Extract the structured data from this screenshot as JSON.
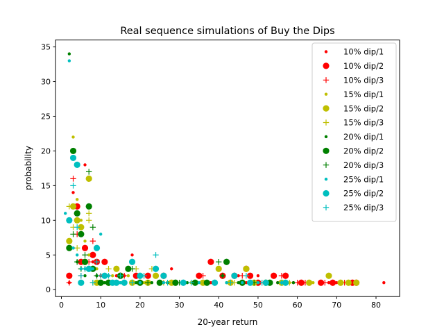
{
  "chart_data": {
    "type": "scatter",
    "title": "Real sequence simulations of Buy the Dips",
    "xlabel": "20-year return",
    "ylabel": "probability",
    "xlim": [
      -1.5,
      86
    ],
    "ylim": [
      -1,
      36
    ],
    "xticks": [
      0,
      10,
      20,
      30,
      40,
      50,
      60,
      70,
      80
    ],
    "yticks": [
      0,
      5,
      10,
      15,
      20,
      25,
      30,
      35
    ],
    "grid": false,
    "legend_position": "top-right",
    "colors": {
      "red": "#ff0000",
      "olive": "#bfbf00",
      "green": "#008000",
      "cyan": "#00bfbf"
    },
    "series": [
      {
        "name": "10% dip/1",
        "color": "#ff0000",
        "marker": "dot",
        "points": [
          [
            2,
            1
          ],
          [
            3,
            14
          ],
          [
            6,
            18
          ],
          [
            7,
            12
          ],
          [
            8,
            4
          ],
          [
            10,
            2
          ],
          [
            12,
            2
          ],
          [
            14,
            2
          ],
          [
            16,
            2
          ],
          [
            18,
            5
          ],
          [
            20,
            2
          ],
          [
            22,
            1
          ],
          [
            24,
            2
          ],
          [
            26,
            1
          ],
          [
            28,
            3
          ],
          [
            35,
            2
          ],
          [
            38,
            1
          ],
          [
            40,
            3
          ],
          [
            45,
            2
          ],
          [
            47,
            1
          ],
          [
            48,
            1
          ],
          [
            50,
            2
          ],
          [
            52,
            1
          ],
          [
            55,
            1
          ],
          [
            57,
            2
          ],
          [
            59,
            1
          ],
          [
            61,
            1
          ],
          [
            63,
            1
          ],
          [
            66,
            1
          ],
          [
            68,
            1
          ],
          [
            70,
            1
          ],
          [
            73,
            1
          ],
          [
            75,
            1
          ],
          [
            82,
            1
          ]
        ]
      },
      {
        "name": "10% dip/2",
        "color": "#ff0000",
        "marker": "circle",
        "points": [
          [
            2,
            2
          ],
          [
            4,
            12
          ],
          [
            5,
            4
          ],
          [
            6,
            6
          ],
          [
            8,
            5
          ],
          [
            9,
            4
          ],
          [
            11,
            4
          ],
          [
            15,
            2
          ],
          [
            19,
            2
          ],
          [
            22,
            2
          ],
          [
            26,
            2
          ],
          [
            35,
            2
          ],
          [
            38,
            4
          ],
          [
            41,
            2
          ],
          [
            44,
            2
          ],
          [
            47,
            3
          ],
          [
            48,
            2
          ],
          [
            50,
            1
          ],
          [
            54,
            2
          ],
          [
            57,
            2
          ],
          [
            61,
            1
          ],
          [
            66,
            1
          ],
          [
            69,
            1
          ],
          [
            74,
            1
          ],
          [
            75,
            1
          ]
        ]
      },
      {
        "name": "10% dip/3",
        "color": "#ff0000",
        "marker": "plus",
        "points": [
          [
            2,
            1
          ],
          [
            3,
            16
          ],
          [
            4,
            8
          ],
          [
            5,
            2
          ],
          [
            6,
            3
          ],
          [
            7,
            4
          ],
          [
            8,
            7
          ],
          [
            10,
            2
          ],
          [
            13,
            1
          ],
          [
            16,
            2
          ],
          [
            21,
            2
          ],
          [
            25,
            1
          ],
          [
            36,
            2
          ],
          [
            39,
            1
          ],
          [
            46,
            2
          ],
          [
            51,
            1
          ],
          [
            56,
            2
          ],
          [
            60,
            1
          ],
          [
            62,
            1
          ],
          [
            67,
            1
          ],
          [
            72,
            1
          ],
          [
            74,
            1
          ]
        ]
      },
      {
        "name": "15% dip/1",
        "color": "#bfbf00",
        "marker": "dot",
        "points": [
          [
            3,
            22
          ],
          [
            4,
            13
          ],
          [
            5,
            10
          ],
          [
            6,
            7
          ],
          [
            7,
            5
          ],
          [
            9,
            3
          ],
          [
            11,
            1
          ],
          [
            13,
            2
          ],
          [
            17,
            2
          ],
          [
            21,
            1
          ],
          [
            27,
            1
          ],
          [
            33,
            1
          ],
          [
            37,
            1
          ],
          [
            42,
            1
          ],
          [
            46,
            1
          ],
          [
            53,
            1
          ],
          [
            58,
            1
          ],
          [
            64,
            1
          ],
          [
            71,
            1
          ]
        ]
      },
      {
        "name": "15% dip/2",
        "color": "#bfbf00",
        "marker": "circle",
        "points": [
          [
            2,
            7
          ],
          [
            3,
            12
          ],
          [
            4,
            10
          ],
          [
            5,
            9
          ],
          [
            6,
            4
          ],
          [
            7,
            16
          ],
          [
            9,
            1
          ],
          [
            10,
            1
          ],
          [
            12,
            1
          ],
          [
            14,
            3
          ],
          [
            18,
            1
          ],
          [
            22,
            1
          ],
          [
            24,
            2
          ],
          [
            28,
            1
          ],
          [
            36,
            1
          ],
          [
            40,
            3
          ],
          [
            43,
            1
          ],
          [
            47,
            3
          ],
          [
            49,
            1
          ],
          [
            52,
            1
          ],
          [
            56,
            1
          ],
          [
            63,
            1
          ],
          [
            68,
            2
          ],
          [
            71,
            1
          ],
          [
            73,
            1
          ],
          [
            75,
            1
          ]
        ]
      },
      {
        "name": "15% dip/3",
        "color": "#bfbf00",
        "marker": "plus",
        "points": [
          [
            2,
            12
          ],
          [
            3,
            9
          ],
          [
            4,
            6
          ],
          [
            5,
            8
          ],
          [
            6,
            3
          ],
          [
            7,
            10
          ],
          [
            7,
            11
          ],
          [
            8,
            1
          ],
          [
            12,
            3
          ],
          [
            15,
            2
          ],
          [
            19,
            3
          ],
          [
            23,
            3
          ],
          [
            26,
            1
          ],
          [
            31,
            1
          ],
          [
            36,
            1
          ],
          [
            44,
            1
          ],
          [
            48,
            1
          ],
          [
            53,
            1
          ],
          [
            58,
            1
          ]
        ]
      },
      {
        "name": "20% dip/1",
        "color": "#008000",
        "marker": "dot",
        "points": [
          [
            2,
            34
          ],
          [
            3,
            6
          ],
          [
            4,
            4
          ],
          [
            5,
            3
          ],
          [
            6,
            2
          ],
          [
            7,
            3
          ],
          [
            9,
            2
          ],
          [
            11,
            1
          ],
          [
            15,
            1
          ],
          [
            19,
            1
          ],
          [
            23,
            1
          ],
          [
            27,
            1
          ],
          [
            32,
            1
          ],
          [
            37,
            1
          ],
          [
            41,
            2
          ],
          [
            45,
            1
          ],
          [
            50,
            1
          ],
          [
            55,
            1
          ],
          [
            59,
            1
          ]
        ]
      },
      {
        "name": "20% dip/2",
        "color": "#008000",
        "marker": "circle",
        "points": [
          [
            2,
            6
          ],
          [
            3,
            20
          ],
          [
            4,
            11
          ],
          [
            5,
            8
          ],
          [
            6,
            4
          ],
          [
            7,
            12
          ],
          [
            8,
            3
          ],
          [
            10,
            1
          ],
          [
            12,
            1
          ],
          [
            15,
            2
          ],
          [
            17,
            3
          ],
          [
            20,
            1
          ],
          [
            25,
            1
          ],
          [
            29,
            1
          ],
          [
            34,
            1
          ],
          [
            37,
            1
          ],
          [
            42,
            4
          ],
          [
            46,
            1
          ],
          [
            53,
            1
          ]
        ]
      },
      {
        "name": "20% dip/3",
        "color": "#008000",
        "marker": "plus",
        "points": [
          [
            2,
            6
          ],
          [
            3,
            8
          ],
          [
            4,
            4
          ],
          [
            5,
            3
          ],
          [
            6,
            5
          ],
          [
            7,
            17
          ],
          [
            8,
            9
          ],
          [
            9,
            2
          ],
          [
            11,
            2
          ],
          [
            14,
            1
          ],
          [
            16,
            1
          ],
          [
            18,
            3
          ],
          [
            22,
            1
          ],
          [
            30,
            1
          ],
          [
            34,
            1
          ],
          [
            40,
            4
          ],
          [
            41,
            2
          ],
          [
            49,
            1
          ]
        ]
      },
      {
        "name": "25% dip/1",
        "color": "#00bfbf",
        "marker": "dot",
        "points": [
          [
            1,
            11
          ],
          [
            2,
            33
          ],
          [
            3,
            6
          ],
          [
            4,
            5
          ],
          [
            5,
            3
          ],
          [
            6,
            3
          ],
          [
            8,
            3
          ],
          [
            10,
            8
          ],
          [
            12,
            2
          ],
          [
            15,
            1
          ],
          [
            20,
            1
          ],
          [
            26,
            1
          ],
          [
            35,
            1
          ],
          [
            42,
            1
          ],
          [
            46,
            1
          ],
          [
            50,
            1
          ],
          [
            56,
            1
          ]
        ]
      },
      {
        "name": "25% dip/2",
        "color": "#00bfbf",
        "marker": "circle",
        "points": [
          [
            2,
            10
          ],
          [
            3,
            19
          ],
          [
            4,
            18
          ],
          [
            5,
            1
          ],
          [
            7,
            3
          ],
          [
            9,
            6
          ],
          [
            11,
            2
          ],
          [
            13,
            1
          ],
          [
            14,
            1
          ],
          [
            16,
            1
          ],
          [
            18,
            4
          ],
          [
            20,
            2
          ],
          [
            24,
            3
          ],
          [
            26,
            2
          ],
          [
            31,
            1
          ],
          [
            39,
            1
          ],
          [
            44,
            2
          ],
          [
            48,
            1
          ],
          [
            52,
            1
          ],
          [
            57,
            1
          ]
        ]
      },
      {
        "name": "25% dip/3",
        "color": "#00bfbf",
        "marker": "plus",
        "points": [
          [
            3,
            15
          ],
          [
            4,
            9
          ],
          [
            5,
            2
          ],
          [
            6,
            3
          ],
          [
            8,
            1
          ],
          [
            9,
            4
          ],
          [
            10,
            2
          ],
          [
            12,
            2
          ],
          [
            15,
            2
          ],
          [
            18,
            1
          ],
          [
            21,
            2
          ],
          [
            24,
            5
          ],
          [
            27,
            1
          ],
          [
            33,
            1
          ],
          [
            39,
            1
          ],
          [
            43,
            1
          ],
          [
            47,
            2
          ],
          [
            51,
            1
          ],
          [
            56,
            1
          ]
        ]
      }
    ]
  }
}
